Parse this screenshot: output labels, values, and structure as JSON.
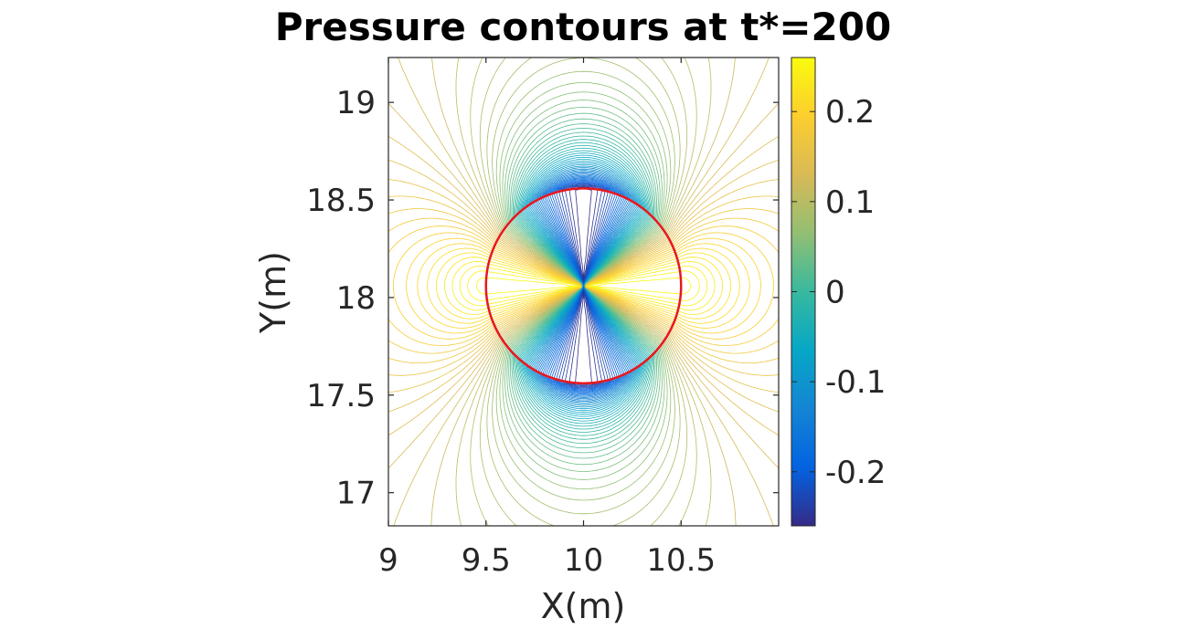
{
  "chart_data": {
    "type": "contour",
    "title": "Pressure contours at t*=200",
    "xlabel": "X(m)",
    "ylabel": "Y(m)",
    "xlim": [
      9.0,
      11.0
    ],
    "ylim": [
      16.83,
      19.23
    ],
    "x_ticks": [
      "9",
      "9.5",
      "10",
      "10.5"
    ],
    "x_tick_values": [
      9.0,
      9.5,
      10.0,
      10.5
    ],
    "y_ticks": [
      "17",
      "17.5",
      "18",
      "18.5",
      "19"
    ],
    "y_tick_values": [
      17.0,
      17.5,
      18.0,
      18.5,
      19.0
    ],
    "colorbar": {
      "colormap": "parula",
      "range": [
        -0.26,
        0.26
      ],
      "ticks": [
        "-0.2",
        "-0.1",
        "0",
        "0.1",
        "0.2"
      ],
      "tick_values": [
        -0.2,
        -0.1,
        0.0,
        0.1,
        0.2
      ]
    },
    "cylinder": {
      "center_x": 10.0,
      "center_y": 18.06,
      "radius": 0.5,
      "color": "#e8181e"
    },
    "field": {
      "description_of_features": "high pressure (~0.26) at front stagnation point x~9.5, low pressure (~-0.26) near top/bottom shoulders",
      "stagnation_point": [
        9.5,
        18.06
      ],
      "contour_levels": 70
    },
    "grid": false,
    "colorbar_position": "right"
  }
}
